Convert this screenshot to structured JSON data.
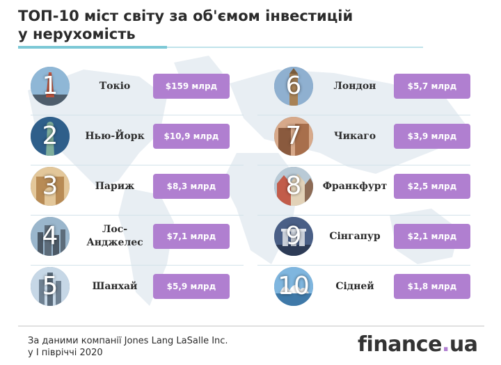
{
  "title_line1": "ТОП-10 міст світу за об'ємом інвестицій",
  "title_line2": "у нерухомість",
  "chart_data": {
    "type": "table",
    "ranks": [
      "1",
      "2",
      "3",
      "4",
      "5",
      "6",
      "7",
      "8",
      "9",
      "10"
    ],
    "categories": [
      "Токіо",
      "Нью-Йорк",
      "Париж",
      "Лос-Анджелес",
      "Шанхай",
      "Лондон",
      "Чикаго",
      "Франкфурт",
      "Сінгапур",
      "Сідней"
    ],
    "values": [
      159,
      10.9,
      8.3,
      7.1,
      5.9,
      5.7,
      3.9,
      2.5,
      2.1,
      1.8
    ],
    "value_labels": [
      "$159 млрд",
      "$10,9 млрд",
      "$8,3 млрд",
      "$7,1 млрд",
      "$5,9 млрд",
      "$5,7 млрд",
      "$3,9 млрд",
      "$2,5 млрд",
      "$2,1 млрд",
      "$1,8 млрд"
    ],
    "unit": "млрд"
  },
  "cities": [
    {
      "rank": "1",
      "name": "Токіо",
      "amount": "$159 млрд"
    },
    {
      "rank": "2",
      "name": "Нью-Йорк",
      "amount": "$10,9 млрд"
    },
    {
      "rank": "3",
      "name": "Париж",
      "amount": "$8,3 млрд"
    },
    {
      "rank": "4",
      "name_line1": "Лос-",
      "name_line2": "Анджелес",
      "amount": "$7,1 млрд"
    },
    {
      "rank": "5",
      "name": "Шанхай",
      "amount": "$5,9 млрд"
    },
    {
      "rank": "6",
      "name": "Лондон",
      "amount": "$5,7 млрд"
    },
    {
      "rank": "7",
      "name": "Чикаго",
      "amount": "$3,9 млрд"
    },
    {
      "rank": "8",
      "name": "Франкфурт",
      "amount": "$2,5 млрд"
    },
    {
      "rank": "9",
      "name": "Сінгапур",
      "amount": "$2,1 млрд"
    },
    {
      "rank": "10",
      "name": "Сідней",
      "amount": "$1,8 млрд"
    }
  ],
  "source_line1": "За даними компанії Jones Lang LaSalle Inc.",
  "source_line2": "у І півріччі 2020",
  "logo_main": "finance",
  "logo_dot": ".",
  "logo_tld": "ua",
  "colors": {
    "amount_pill": "#b07fd0",
    "title_accent": "#7cc8d6",
    "map": "#e6edf2",
    "text": "#2b2b2b"
  }
}
